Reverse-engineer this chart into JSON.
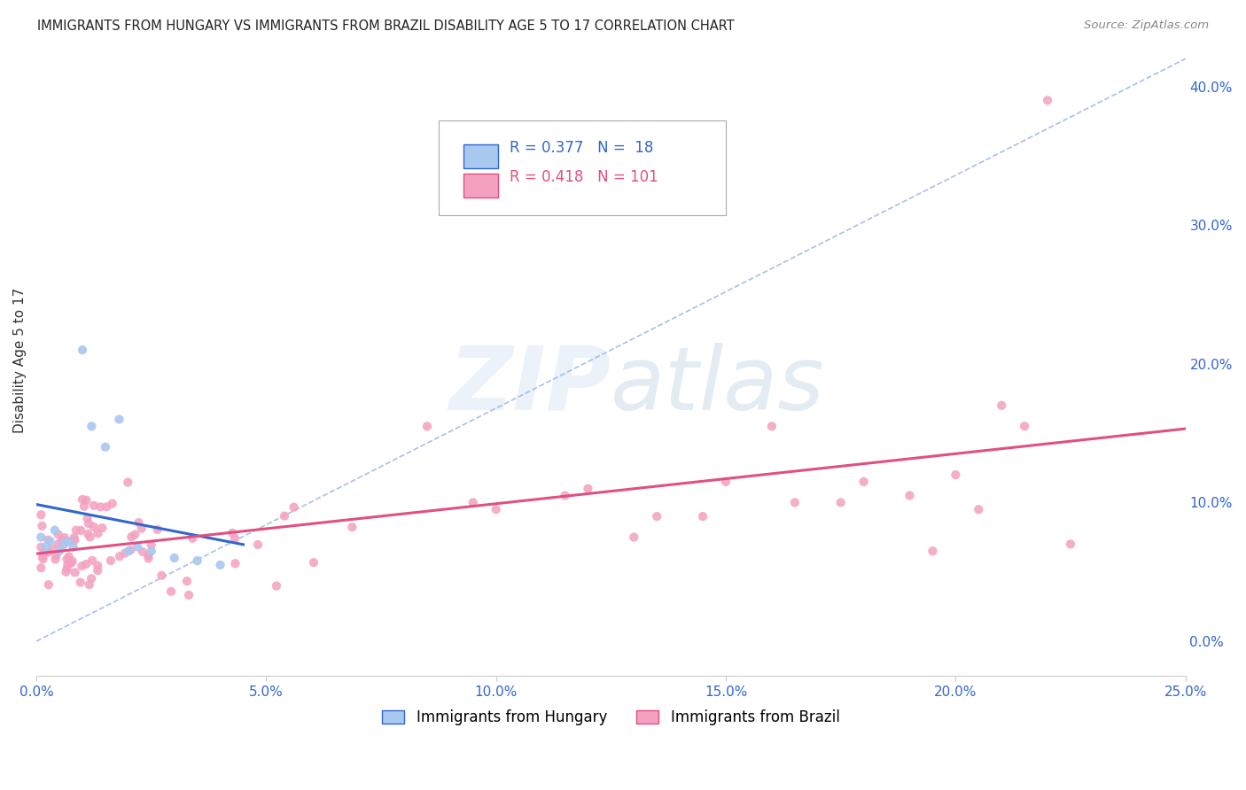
{
  "title": "IMMIGRANTS FROM HUNGARY VS IMMIGRANTS FROM BRAZIL DISABILITY AGE 5 TO 17 CORRELATION CHART",
  "source": "Source: ZipAtlas.com",
  "ylabel": "Disability Age 5 to 17",
  "xlim": [
    0.0,
    0.25
  ],
  "ylim": [
    -0.025,
    0.43
  ],
  "yticks": [
    0.0,
    0.1,
    0.2,
    0.3,
    0.4
  ],
  "ytick_labels": [
    "0.0%",
    "10.0%",
    "20.0%",
    "30.0%",
    "40.0%"
  ],
  "xticks": [
    0.0,
    0.05,
    0.1,
    0.15,
    0.2,
    0.25
  ],
  "xtick_labels": [
    "0.0%",
    "5.0%",
    "10.0%",
    "15.0%",
    "20.0%",
    "25.0%"
  ],
  "hungary_color": "#a8c8f0",
  "brazil_color": "#f4a0c0",
  "hungary_line_color": "#3366cc",
  "brazil_line_color": "#e05080",
  "diag_line_color": "#a0b8e8",
  "R_hungary": 0.377,
  "N_hungary": 18,
  "R_brazil": 0.418,
  "N_brazil": 101,
  "watermark_zip": "ZIP",
  "watermark_atlas": "atlas",
  "legend_label_hungary": "Immigrants from Hungary",
  "legend_label_brazil": "Immigrants from Brazil"
}
